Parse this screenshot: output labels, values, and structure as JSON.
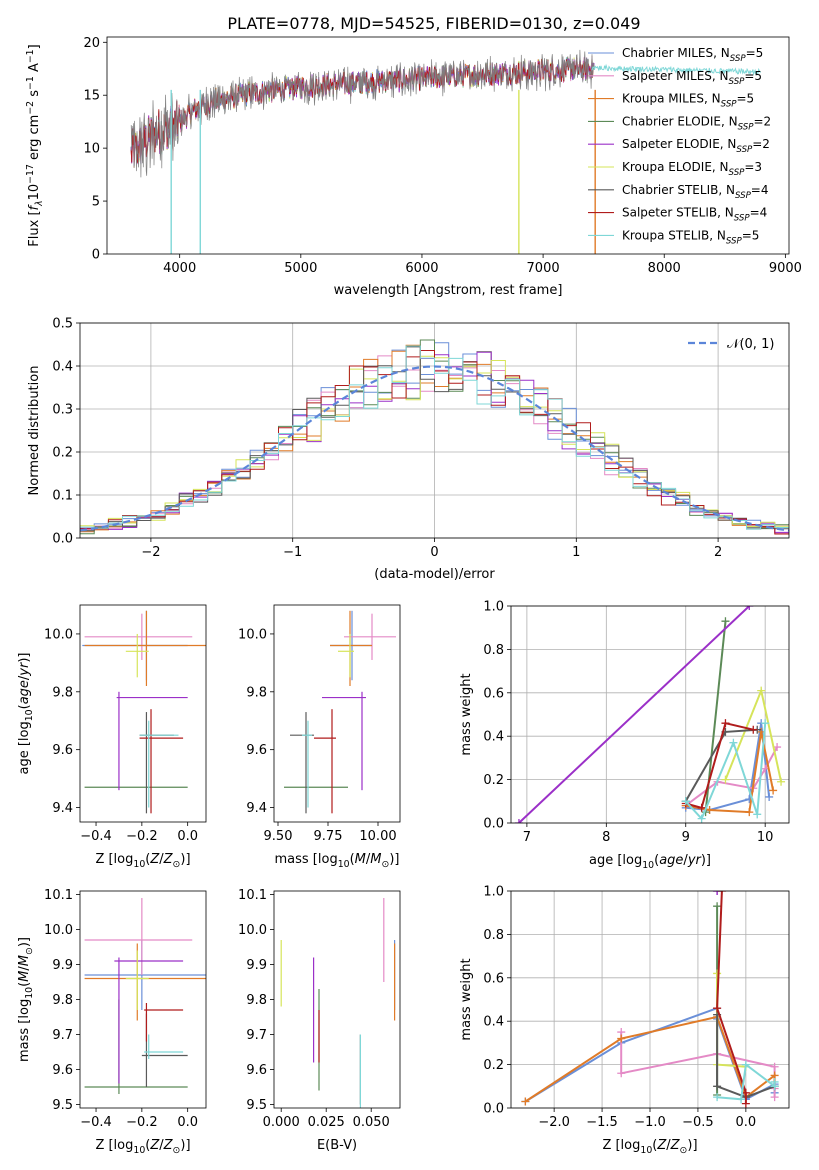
{
  "figure_title": "PLATE=0778, MJD=54525, FIBERID=0130, z=0.049",
  "colors": {
    "Chabrier MILES": "#6a8fd8",
    "Salpeter MILES": "#e48ac6",
    "Kroupa MILES": "#e07b28",
    "Chabrier ELODIE": "#5c8a57",
    "Salpeter ELODIE": "#9b30c8",
    "Kroupa ELODIE": "#d6e45a",
    "Chabrier STELIB": "#5a5a5a",
    "Salpeter STELIB": "#b01c1c",
    "Kroupa STELIB": "#7fd7d7",
    "normal": "#5b85d9"
  },
  "chart_data": [
    {
      "id": "spectrum",
      "type": "line",
      "xlabel": "wavelength [Angstrom, rest frame]",
      "ylabel": "Flux [f_λ 10^-17 erg cm^-2 s^-1 A^-1]",
      "xlim": [
        3400,
        9030
      ],
      "ylim": [
        0,
        20.5
      ],
      "xticks": [
        4000,
        5000,
        6000,
        7000,
        8000,
        9000
      ],
      "yticks": [
        0,
        5,
        10,
        15,
        20
      ],
      "grid": false,
      "legend_position": "right",
      "legend": [
        {
          "model": "Chabrier MILES",
          "label": "Chabrier MILES, N",
          "sub": "SSP",
          "suffix": "=5"
        },
        {
          "model": "Salpeter MILES",
          "label": "Salpeter MILES, N",
          "sub": "SSP",
          "suffix": "=5"
        },
        {
          "model": "Kroupa MILES",
          "label": "Kroupa MILES, N",
          "sub": "SSP",
          "suffix": "=5"
        },
        {
          "model": "Chabrier ELODIE",
          "label": "Chabrier ELODIE, N",
          "sub": "SSP",
          "suffix": "=2"
        },
        {
          "model": "Salpeter ELODIE",
          "label": "Salpeter ELODIE, N",
          "sub": "SSP",
          "suffix": "=2"
        },
        {
          "model": "Kroupa ELODIE",
          "label": "Kroupa ELODIE, N",
          "sub": "SSP",
          "suffix": "=3"
        },
        {
          "model": "Chabrier STELIB",
          "label": "Chabrier STELIB, N",
          "sub": "SSP",
          "suffix": "=4"
        },
        {
          "model": "Salpeter STELIB",
          "label": "Salpeter STELIB, N",
          "sub": "SSP",
          "suffix": "=4"
        },
        {
          "model": "Kroupa STELIB",
          "label": "Kroupa STELIB, N",
          "sub": "SSP",
          "suffix": "=5"
        }
      ],
      "data_trend": {
        "x": [
          3600,
          3800,
          3950,
          4100,
          4300,
          4600,
          5000,
          5500,
          6000,
          6500,
          7000,
          7400
        ],
        "y": [
          9.5,
          11.5,
          12.0,
          13.5,
          14.5,
          15.2,
          15.8,
          16.2,
          16.6,
          17.0,
          17.3,
          17.5
        ]
      },
      "model_tail_x": [
        7400,
        8800
      ],
      "model_tail_y": [
        17.6,
        17.2
      ],
      "dropouts": [
        {
          "model": "Kroupa STELIB",
          "x": 4170
        },
        {
          "model": "Kroupa ELODIE",
          "x": 6800
        },
        {
          "model": "Kroupa MILES",
          "x": 7430
        },
        {
          "model": "Kroupa STELIB",
          "x": 3930
        }
      ]
    },
    {
      "id": "residuals",
      "type": "histogram",
      "xlabel": "(data-model)/error",
      "ylabel": "Normed distribution",
      "xlim": [
        -2.5,
        2.5
      ],
      "ylim": [
        0,
        0.5
      ],
      "xticks": [
        -2,
        -1,
        0,
        1,
        2
      ],
      "yticks": [
        0.0,
        0.1,
        0.2,
        0.3,
        0.4,
        0.5
      ],
      "grid": true,
      "bin_width": 0.1,
      "normal_label": "N(0,1)",
      "legend_position": "top-right"
    },
    {
      "id": "age_vs_Z",
      "type": "errorbar",
      "xlabel": "Z [log10(Z/Z⊙)]",
      "ylabel": "age [log10(age/yr)]",
      "xlim": [
        -0.47,
        0.08
      ],
      "ylim": [
        9.35,
        10.1
      ],
      "xticks": [
        -0.4,
        -0.2,
        0.0
      ],
      "yticks": [
        9.4,
        9.6,
        9.8,
        10.0
      ],
      "points": [
        {
          "model": "Chabrier MILES",
          "x": -0.18,
          "xerr": [
            0.28,
            0.18
          ],
          "y": 9.96,
          "yerr": [
            0.12,
            0.12
          ]
        },
        {
          "model": "Salpeter MILES",
          "x": -0.2,
          "xerr": [
            0.25,
            0.22
          ],
          "y": 9.99,
          "yerr": [
            0.08,
            0.08
          ]
        },
        {
          "model": "Kroupa MILES",
          "x": -0.18,
          "xerr": [
            0.27,
            0.27
          ],
          "y": 9.96,
          "yerr": [
            0.14,
            0.12
          ]
        },
        {
          "model": "Chabrier ELODIE",
          "x": -0.28,
          "xerr": [
            0.17,
            0.28
          ],
          "y": 9.47,
          "yerr": [
            0.0,
            0.0
          ]
        },
        {
          "model": "Salpeter ELODIE",
          "x": -0.3,
          "xerr": [
            0.01,
            0.3
          ],
          "y": 9.78,
          "yerr": [
            0.32,
            0.02
          ]
        },
        {
          "model": "Kroupa ELODIE",
          "x": -0.22,
          "xerr": [
            0.05,
            0.05
          ],
          "y": 9.94,
          "yerr": [
            0.09,
            0.06
          ]
        },
        {
          "model": "Chabrier STELIB",
          "x": -0.18,
          "xerr": [
            0.03,
            0.12
          ],
          "y": 9.65,
          "yerr": [
            0.27,
            0.08
          ]
        },
        {
          "model": "Salpeter STELIB",
          "x": -0.16,
          "xerr": [
            0.05,
            0.14
          ],
          "y": 9.64,
          "yerr": [
            0.26,
            0.1
          ]
        },
        {
          "model": "Kroupa STELIB",
          "x": -0.17,
          "xerr": [
            0.04,
            0.13
          ],
          "y": 9.65,
          "yerr": [
            0.25,
            0.05
          ]
        }
      ]
    },
    {
      "id": "age_vs_mass",
      "type": "errorbar",
      "xlabel": "mass [log10(M/M⊙)]",
      "ylabel": "",
      "xlim": [
        9.48,
        10.11
      ],
      "ylim": [
        9.35,
        10.1
      ],
      "xticks": [
        9.5,
        9.75,
        10.0
      ],
      "yticks": [
        9.4,
        9.6,
        9.8,
        10.0
      ],
      "points": [
        {
          "model": "Chabrier MILES",
          "x": 9.87,
          "xerr": [
            0.11,
            0.1
          ],
          "y": 9.96,
          "yerr": [
            0.12,
            0.12
          ]
        },
        {
          "model": "Salpeter MILES",
          "x": 9.97,
          "xerr": [
            0.14,
            0.12
          ],
          "y": 9.99,
          "yerr": [
            0.08,
            0.08
          ]
        },
        {
          "model": "Kroupa MILES",
          "x": 9.86,
          "xerr": [
            0.1,
            0.11
          ],
          "y": 9.96,
          "yerr": [
            0.14,
            0.12
          ]
        },
        {
          "model": "Chabrier ELODIE",
          "x": 9.55,
          "xerr": [
            0.02,
            0.3
          ],
          "y": 9.47,
          "yerr": [
            0.0,
            0.0
          ]
        },
        {
          "model": "Salpeter ELODIE",
          "x": 9.92,
          "xerr": [
            0.2,
            0.02
          ],
          "y": 9.78,
          "yerr": [
            0.32,
            0.02
          ]
        },
        {
          "model": "Kroupa ELODIE",
          "x": 9.86,
          "xerr": [
            0.06,
            0.02
          ],
          "y": 9.94,
          "yerr": [
            0.09,
            0.06
          ]
        },
        {
          "model": "Chabrier STELIB",
          "x": 9.64,
          "xerr": [
            0.08,
            0.04
          ],
          "y": 9.65,
          "yerr": [
            0.27,
            0.08
          ]
        },
        {
          "model": "Salpeter STELIB",
          "x": 9.77,
          "xerr": [
            0.09,
            0.02
          ],
          "y": 9.64,
          "yerr": [
            0.26,
            0.1
          ]
        },
        {
          "model": "Kroupa STELIB",
          "x": 9.65,
          "xerr": [
            0.03,
            0.02
          ],
          "y": 9.65,
          "yerr": [
            0.25,
            0.05
          ]
        }
      ]
    },
    {
      "id": "weight_vs_age",
      "type": "line",
      "xlabel": "age [log10(age/yr)]",
      "ylabel": "mass weight",
      "xlim": [
        6.8,
        10.3
      ],
      "ylim": [
        0,
        1.0
      ],
      "xticks": [
        7,
        8,
        9,
        10
      ],
      "yticks": [
        0.0,
        0.2,
        0.4,
        0.6,
        0.8,
        1.0
      ],
      "grid": true,
      "series": [
        {
          "model": "Chabrier MILES",
          "x": [
            9.0,
            9.3,
            9.8,
            9.95,
            10.05
          ],
          "y": [
            0.07,
            0.06,
            0.11,
            0.46,
            0.12
          ]
        },
        {
          "model": "Salpeter MILES",
          "x": [
            9.0,
            9.4,
            9.85,
            10.0,
            10.15
          ],
          "y": [
            0.08,
            0.19,
            0.16,
            0.25,
            0.35
          ]
        },
        {
          "model": "Kroupa MILES",
          "x": [
            9.0,
            9.3,
            9.8,
            9.95,
            10.1
          ],
          "y": [
            0.08,
            0.06,
            0.05,
            0.42,
            0.15
          ]
        },
        {
          "model": "Chabrier ELODIE",
          "x": [
            9.25,
            9.5
          ],
          "y": [
            0.05,
            0.93
          ]
        },
        {
          "model": "Salpeter ELODIE",
          "x": [
            6.9,
            9.8
          ],
          "y": [
            0.0,
            1.0
          ]
        },
        {
          "model": "Kroupa ELODIE",
          "x": [
            9.5,
            9.95,
            10.2
          ],
          "y": [
            0.2,
            0.61,
            0.19
          ]
        },
        {
          "model": "Chabrier STELIB",
          "x": [
            9.0,
            9.5,
            9.9
          ],
          "y": [
            0.1,
            0.42,
            0.43
          ]
        },
        {
          "model": "Salpeter STELIB",
          "x": [
            9.0,
            9.2,
            9.5,
            9.85
          ],
          "y": [
            0.09,
            0.07,
            0.46,
            0.43
          ]
        },
        {
          "model": "Kroupa STELIB",
          "x": [
            9.0,
            9.2,
            9.6,
            9.9,
            10.0
          ],
          "y": [
            0.1,
            0.02,
            0.37,
            0.04,
            0.46
          ]
        }
      ]
    },
    {
      "id": "mass_vs_Z",
      "type": "errorbar",
      "xlabel": "Z [log10(Z/Z⊙)]",
      "ylabel": "mass [log10(M/M⊙)]",
      "xlim": [
        -0.47,
        0.08
      ],
      "ylim": [
        9.49,
        10.11
      ],
      "xticks": [
        -0.4,
        -0.2,
        0.0
      ],
      "yticks": [
        9.5,
        9.6,
        9.7,
        9.8,
        9.9,
        10.0,
        10.1
      ],
      "points": [
        {
          "model": "Chabrier MILES",
          "x": -0.2,
          "xerr": [
            0.25,
            0.3
          ],
          "y": 9.87,
          "yerr": [
            0.1,
            0.1
          ]
        },
        {
          "model": "Salpeter MILES",
          "x": -0.2,
          "xerr": [
            0.25,
            0.22
          ],
          "y": 9.97,
          "yerr": [
            0.1,
            0.12
          ]
        },
        {
          "model": "Kroupa MILES",
          "x": -0.22,
          "xerr": [
            0.23,
            0.3
          ],
          "y": 9.86,
          "yerr": [
            0.12,
            0.1
          ]
        },
        {
          "model": "Chabrier ELODIE",
          "x": -0.3,
          "xerr": [
            0.15,
            0.3
          ],
          "y": 9.55,
          "yerr": [
            0.02,
            0.25
          ]
        },
        {
          "model": "Salpeter ELODIE",
          "x": -0.3,
          "xerr": [
            0.02,
            0.28
          ],
          "y": 9.91,
          "yerr": [
            0.35,
            0.01
          ]
        },
        {
          "model": "Kroupa ELODIE",
          "x": -0.22,
          "xerr": [
            0.05,
            0.05
          ],
          "y": 9.86,
          "yerr": [
            0.09,
            0.08
          ]
        },
        {
          "model": "Chabrier STELIB",
          "x": -0.18,
          "xerr": [
            0.02,
            0.18
          ],
          "y": 9.64,
          "yerr": [
            0.09,
            0.12
          ]
        },
        {
          "model": "Salpeter STELIB",
          "x": -0.18,
          "xerr": [
            0.01,
            0.16
          ],
          "y": 9.77,
          "yerr": [
            0.09,
            0.02
          ]
        },
        {
          "model": "Kroupa STELIB",
          "x": -0.17,
          "xerr": [
            0.02,
            0.15
          ],
          "y": 9.65,
          "yerr": [
            0.02,
            0.05
          ]
        }
      ]
    },
    {
      "id": "mass_vs_ebv",
      "type": "errorbar",
      "xlabel": "E(B-V)",
      "ylabel": "",
      "xlim": [
        -0.004,
        0.066
      ],
      "ylim": [
        9.49,
        10.11
      ],
      "xticks": [
        0.0,
        0.025,
        0.05
      ],
      "yticks": [
        9.5,
        9.6,
        9.7,
        9.8,
        9.9,
        10.0,
        10.1
      ],
      "points": [
        {
          "model": "Chabrier MILES",
          "x": 0.063,
          "xerr": [
            0,
            0
          ],
          "y": 9.87,
          "yerr": [
            0.1,
            0.1
          ]
        },
        {
          "model": "Salpeter MILES",
          "x": 0.057,
          "xerr": [
            0,
            0
          ],
          "y": 9.97,
          "yerr": [
            0.12,
            0.12
          ]
        },
        {
          "model": "Kroupa MILES",
          "x": 0.063,
          "xerr": [
            0,
            0
          ],
          "y": 9.86,
          "yerr": [
            0.12,
            0.1
          ]
        },
        {
          "model": "Chabrier ELODIE",
          "x": 0.021,
          "xerr": [
            0,
            0
          ],
          "y": 9.7,
          "yerr": [
            0.16,
            0.13
          ]
        },
        {
          "model": "Salpeter ELODIE",
          "x": 0.018,
          "xerr": [
            0,
            0
          ],
          "y": 9.84,
          "yerr": [
            0.22,
            0.08
          ]
        },
        {
          "model": "Kroupa ELODIE",
          "x": 0.0,
          "xerr": [
            0,
            0
          ],
          "y": 9.87,
          "yerr": [
            0.09,
            0.1
          ]
        },
        {
          "model": "Chabrier STELIB",
          "x": 0.044,
          "xerr": [
            0,
            0
          ],
          "y": 9.6,
          "yerr": [
            0.1,
            0.1
          ]
        },
        {
          "model": "Salpeter STELIB",
          "x": 0.021,
          "xerr": [
            0,
            0
          ],
          "y": 9.71,
          "yerr": [
            0.09,
            0.06
          ]
        },
        {
          "model": "Kroupa STELIB",
          "x": 0.044,
          "xerr": [
            0,
            0
          ],
          "y": 9.6,
          "yerr": [
            0.11,
            0.1
          ]
        }
      ]
    },
    {
      "id": "weight_vs_Z",
      "type": "line",
      "xlabel": "Z [log10(Z/Z⊙)]",
      "ylabel": "mass weight",
      "xlim": [
        -2.45,
        0.45
      ],
      "ylim": [
        0,
        1.0
      ],
      "xticks": [
        -2.0,
        -1.5,
        -1.0,
        -0.5,
        0.0
      ],
      "yticks": [
        0.0,
        0.2,
        0.4,
        0.6,
        0.8,
        1.0
      ],
      "grid": true,
      "series": [
        {
          "model": "Chabrier MILES",
          "x": [
            -2.3,
            -1.3,
            -0.3,
            -0.3,
            0.0,
            0.3,
            0.3
          ],
          "y": [
            0.03,
            0.3,
            0.46,
            0.41,
            0.04,
            0.11,
            0.07
          ]
        },
        {
          "model": "Salpeter MILES",
          "x": [
            -1.3,
            -1.3,
            -0.3,
            0.3,
            0.3,
            0.3
          ],
          "y": [
            0.35,
            0.16,
            0.25,
            0.19,
            0.05,
            0.09
          ]
        },
        {
          "model": "Kroupa MILES",
          "x": [
            -2.3,
            -1.3,
            -0.3,
            0.0,
            0.3,
            0.3
          ],
          "y": [
            0.03,
            0.32,
            0.42,
            0.05,
            0.15,
            0.1
          ]
        },
        {
          "model": "Chabrier ELODIE",
          "x": [
            -0.3,
            -0.3
          ],
          "y": [
            0.06,
            0.93
          ]
        },
        {
          "model": "Salpeter ELODIE",
          "x": [
            -0.3,
            -0.3
          ],
          "y": [
            1.0,
            1.0
          ]
        },
        {
          "model": "Kroupa ELODIE",
          "x": [
            -0.3,
            -0.3,
            0.0
          ],
          "y": [
            0.62,
            0.2,
            0.19
          ]
        },
        {
          "model": "Chabrier STELIB",
          "x": [
            -0.3,
            -0.3,
            0.0,
            0.3
          ],
          "y": [
            0.43,
            0.1,
            0.05,
            0.1
          ]
        },
        {
          "model": "Salpeter STELIB",
          "x": [
            -0.25,
            -0.3,
            0.0,
            0.0
          ],
          "y": [
            1.0,
            0.46,
            0.07,
            0.02
          ]
        },
        {
          "model": "Kroupa STELIB",
          "x": [
            -0.3,
            -0.05,
            0.0,
            0.3,
            0.3
          ],
          "y": [
            0.05,
            0.04,
            0.2,
            0.1,
            0.12
          ]
        }
      ]
    }
  ]
}
